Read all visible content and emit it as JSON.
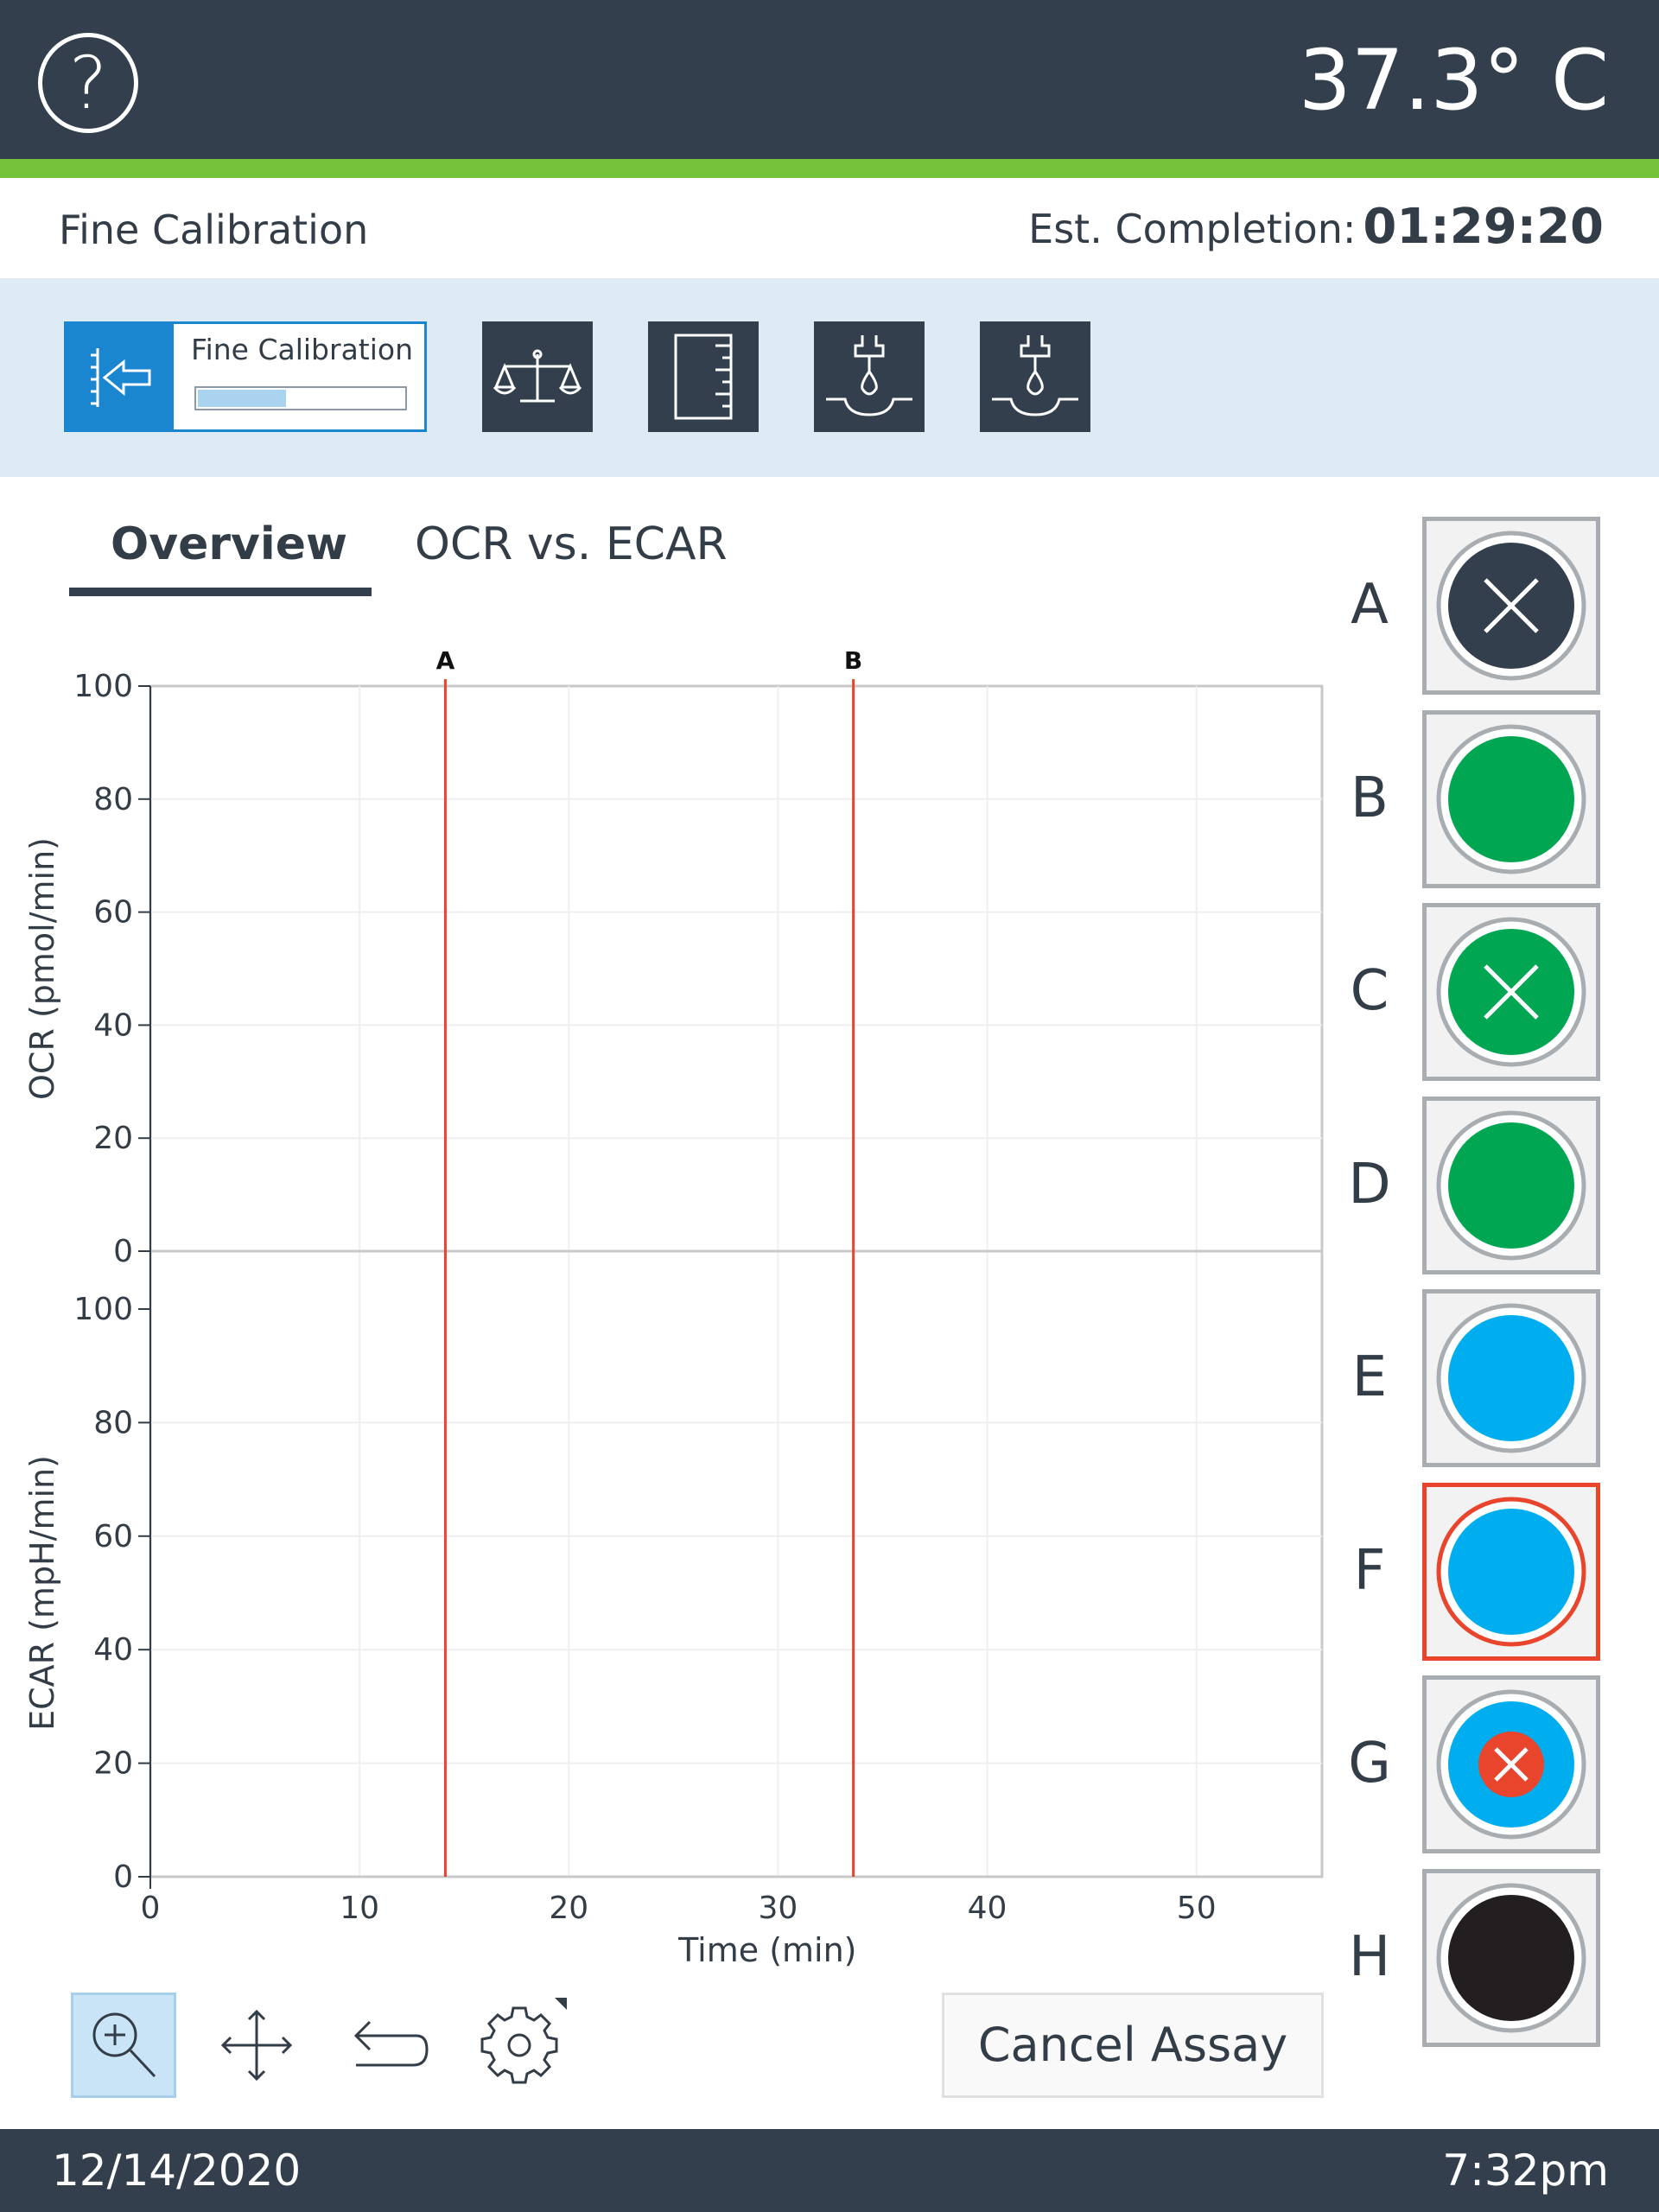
{
  "header": {
    "temperature": "37.3° C",
    "help_icon": "help-icon"
  },
  "status": {
    "stage": "Fine Calibration",
    "est_label": "Est. Completion:",
    "est_value": "01:29:20"
  },
  "steps": {
    "active_label": "Fine Calibration",
    "active_progress": 0.42,
    "items": [
      "calibration-icon",
      "balance-icon",
      "ruler-icon",
      "injection-icon",
      "injection-icon"
    ]
  },
  "tabs": [
    {
      "label": "Overview",
      "selected": true
    },
    {
      "label": "OCR vs. ECAR",
      "selected": false
    }
  ],
  "chart_data": {
    "type": "line",
    "x": {
      "label": "Time (min)",
      "min": 0,
      "max": 56,
      "ticks": [
        0,
        10,
        20,
        30,
        40,
        50
      ]
    },
    "panels": [
      {
        "ylabel": "OCR (pmol/min)",
        "ylim": [
          0,
          100
        ],
        "ticks": [
          0,
          20,
          40,
          60,
          80,
          100
        ]
      },
      {
        "ylabel": "ECAR (mpH/min)",
        "ylim": [
          0,
          100
        ],
        "ticks": [
          0,
          20,
          40,
          60,
          80,
          100
        ]
      }
    ],
    "series": [],
    "markers": [
      {
        "label": "A",
        "x": 14.1
      },
      {
        "label": "B",
        "x": 33.6
      }
    ],
    "grid": true
  },
  "wells": [
    {
      "label": "A",
      "fill": "#333f4c",
      "mark": "x-white",
      "selected": false
    },
    {
      "label": "B",
      "fill": "#00a651",
      "mark": "none",
      "selected": false
    },
    {
      "label": "C",
      "fill": "#00a651",
      "mark": "x-white",
      "selected": false
    },
    {
      "label": "D",
      "fill": "#00a651",
      "mark": "none",
      "selected": false
    },
    {
      "label": "E",
      "fill": "#00aeef",
      "mark": "none",
      "selected": false
    },
    {
      "label": "F",
      "fill": "#00aeef",
      "mark": "none",
      "selected": true
    },
    {
      "label": "G",
      "fill": "#00aeef",
      "mark": "x-red",
      "selected": false
    },
    {
      "label": "H",
      "fill": "#231f20",
      "mark": "none",
      "selected": false
    }
  ],
  "toolbar": {
    "tools": [
      "zoom-in-icon",
      "pan-icon",
      "undo-icon",
      "settings-icon"
    ],
    "cancel_label": "Cancel Assay"
  },
  "footer": {
    "date": "12/14/2020",
    "time": "7:32pm"
  },
  "colors": {
    "header_bg": "#333f4c",
    "accent_green": "#74c13a",
    "step_blue": "#1a86d0",
    "marker_red": "#e8452c"
  }
}
